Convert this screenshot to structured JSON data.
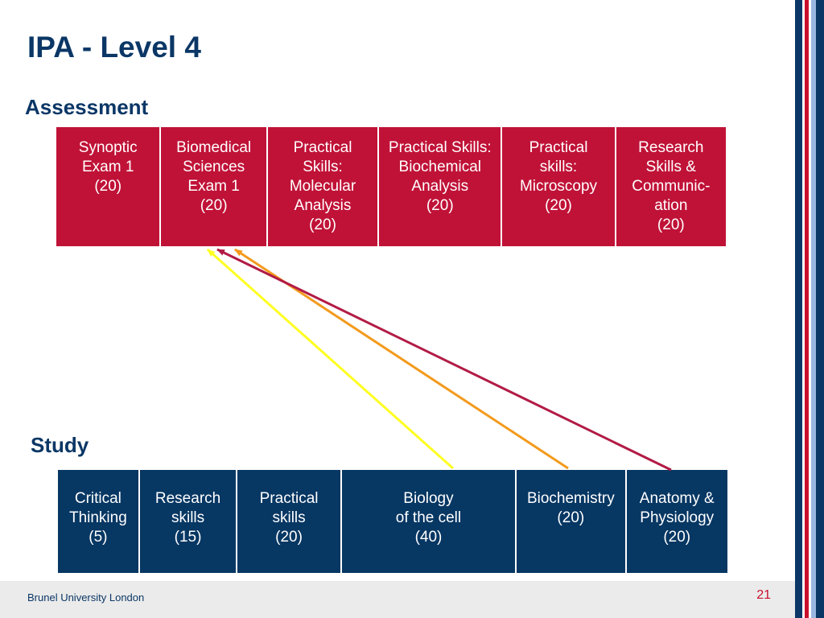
{
  "slide": {
    "title": "IPA - Level 4",
    "assessment_label": "Assessment",
    "study_label": "Study",
    "footer_text": "Brunel University London",
    "page_number": "21"
  },
  "colors": {
    "assessment_box": "#c01237",
    "study_box": "#073763",
    "arrow_yellow": "#ffff22",
    "arrow_orange": "#f39a1c",
    "arrow_crimson": "#b21b45",
    "stripes": [
      "#0b3766",
      "#ffffff",
      "#c8102e",
      "#ffffff",
      "#9ab7e0",
      "#0b3766"
    ]
  },
  "assessment": [
    {
      "text": "Synoptic\nExam 1\n(20)",
      "flex": 130
    },
    {
      "text": "Biomedical\nSciences\nExam 1\n(20)",
      "flex": 132
    },
    {
      "text": "Practical\nSkills:\nMolecular\nAnalysis\n(20)",
      "flex": 138
    },
    {
      "text": "Practical Skills:\nBiochemical\nAnalysis\n(20)",
      "flex": 153
    },
    {
      "text": "Practical\nskills:\nMicroscopy\n(20)",
      "flex": 141
    },
    {
      "text": "Research\nSkills &\nCommunic-\nation\n(20)",
      "flex": 138
    }
  ],
  "study": [
    {
      "text": "Critical\nThinking\n(5)",
      "flex": 101
    },
    {
      "text": "Research\nskills\n(15)",
      "flex": 121
    },
    {
      "text": "Practical\nskills\n(20)",
      "flex": 129
    },
    {
      "text": "Biology\nof the cell\n(40)",
      "flex": 218
    },
    {
      "text": "Biochemistry\n(20)",
      "flex": 136
    },
    {
      "text": "Anatomy  &\nPhysiology\n(20)",
      "flex": 127
    }
  ],
  "links": [
    {
      "from": "Biology of the cell",
      "to": "Biomedical Sciences Exam 1",
      "color": "yellow"
    },
    {
      "from": "Biochemistry",
      "to": "Biomedical Sciences Exam 1",
      "color": "orange"
    },
    {
      "from": "Anatomy & Physiology",
      "to": "Biomedical Sciences Exam 1",
      "color": "crimson"
    }
  ]
}
